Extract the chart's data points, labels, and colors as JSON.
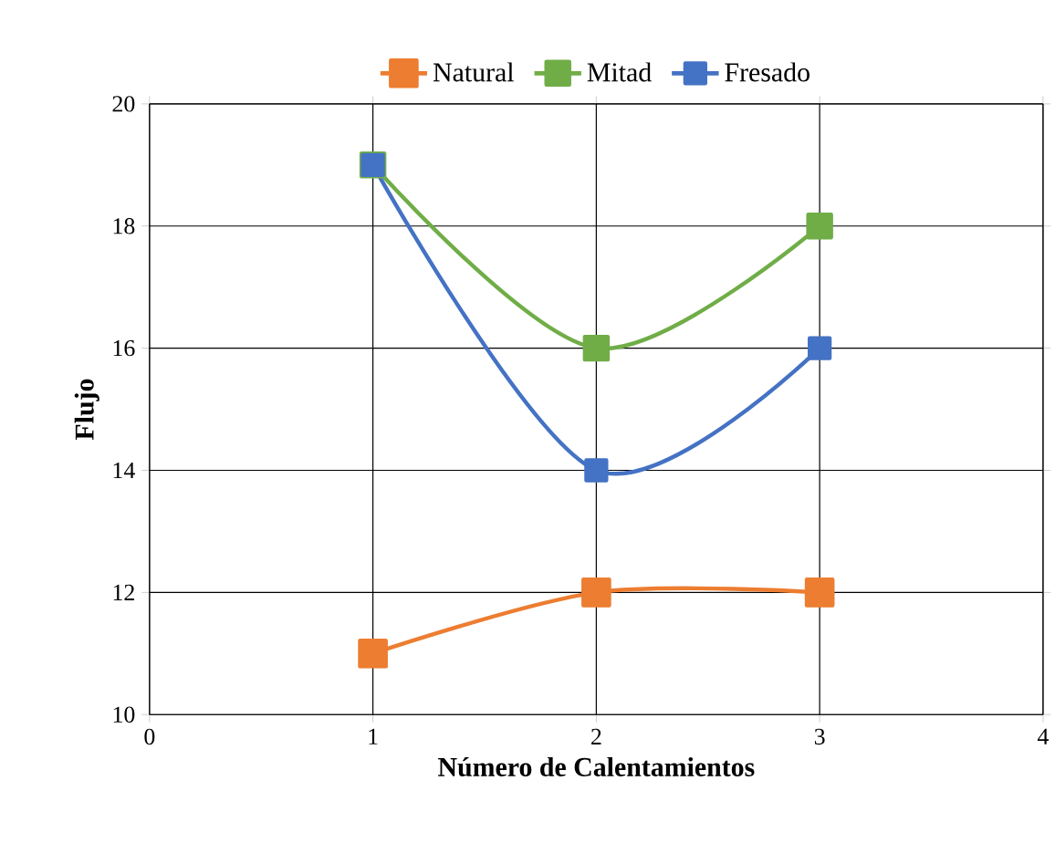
{
  "chart_data": {
    "type": "line",
    "xlabel": "Número de Calentamientos",
    "ylabel": "Flujo",
    "x": [
      1,
      2,
      3
    ],
    "series": [
      {
        "name": "Natural",
        "color": "#ed7d31",
        "values": [
          11,
          12,
          12
        ]
      },
      {
        "name": "Mitad",
        "color": "#70ad47",
        "values": [
          19,
          16,
          18
        ]
      },
      {
        "name": "Fresado",
        "color": "#4472c4",
        "values": [
          19,
          14,
          16
        ]
      }
    ],
    "xlim": [
      0,
      4
    ],
    "xticks": [
      0,
      1,
      2,
      3,
      4
    ],
    "ylim": [
      10,
      20
    ],
    "yticks": [
      10,
      12,
      14,
      16,
      18,
      20
    ],
    "grid": true,
    "legend": "top",
    "marker": "square"
  }
}
